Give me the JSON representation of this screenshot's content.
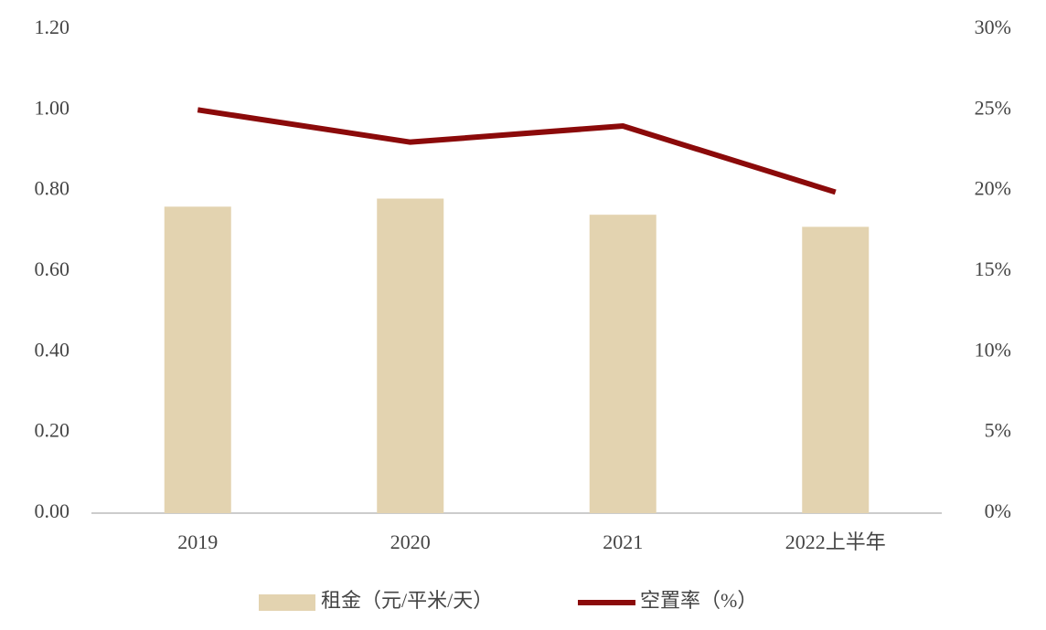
{
  "chart_data": {
    "type": "bar",
    "categories": [
      "2019",
      "2020",
      "2021",
      "2022上半年"
    ],
    "series": [
      {
        "name": "租金（元/平米/天）",
        "type": "bar",
        "color": "#e3d3b0",
        "values": [
          0.76,
          0.78,
          0.74,
          0.71
        ]
      },
      {
        "name": "空置率（%）",
        "type": "line",
        "axis": "y2",
        "color": "#8b0a0a",
        "values": [
          25,
          23,
          24,
          19.9
        ]
      }
    ],
    "ylim": [
      0,
      1.2
    ],
    "yticks": [
      {
        "value": 0,
        "label": "0.00"
      },
      {
        "value": 0.2,
        "label": "0.20"
      },
      {
        "value": 0.4,
        "label": "0.40"
      },
      {
        "value": 0.6,
        "label": "0.60"
      },
      {
        "value": 0.8,
        "label": "0.80"
      },
      {
        "value": 1,
        "label": "1.00"
      },
      {
        "value": 1.2,
        "label": "1.20"
      }
    ],
    "y2lim": [
      0,
      30
    ],
    "y2ticks": [
      {
        "value": 0,
        "label": "0%"
      },
      {
        "value": 5,
        "label": "5%"
      },
      {
        "value": 10,
        "label": "10%"
      },
      {
        "value": 15,
        "label": "15%"
      },
      {
        "value": 20,
        "label": "20%"
      },
      {
        "value": 25,
        "label": "25%"
      },
      {
        "value": 30,
        "label": "30%"
      }
    ],
    "grid": false,
    "legend": "bottom"
  }
}
